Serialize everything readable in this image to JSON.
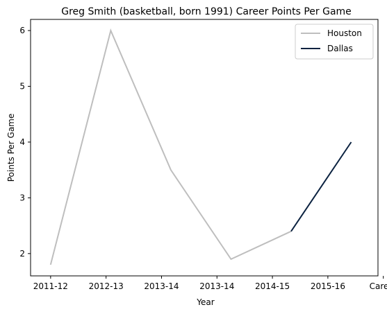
{
  "chart_data": {
    "type": "line",
    "title": "Greg Smith (basketball, born 1991) Career Points Per Game",
    "xlabel": "Year",
    "ylabel": "Points Per Game",
    "x_ticks": [
      "2011-12",
      "2012-13",
      "2013-14",
      "2013-14",
      "2014-15",
      "2015-16",
      "Career"
    ],
    "y_ticks": [
      2,
      3,
      4,
      5,
      6
    ],
    "ylim": [
      1.6,
      6.2
    ],
    "xlim": [
      -0.3,
      4.9
    ],
    "grid": false,
    "legend_position": "top-right",
    "series": [
      {
        "name": "Houston",
        "color": "#bebebe",
        "points": [
          {
            "x": 0,
            "y": 1.8
          },
          {
            "x": 1,
            "y": 6.0
          },
          {
            "x": 2,
            "y": 3.5
          },
          {
            "x": 3,
            "y": 1.9
          },
          {
            "x": 4,
            "y": 2.4
          }
        ]
      },
      {
        "name": "Dallas",
        "color": "#0b2240",
        "points": [
          {
            "x": 4,
            "y": 2.4
          },
          {
            "x": 5,
            "y": 4.0
          }
        ]
      }
    ],
    "x_tick_positions": [
      0,
      0.83,
      1.66,
      2.49,
      3.32,
      4.15,
      4.98
    ]
  }
}
